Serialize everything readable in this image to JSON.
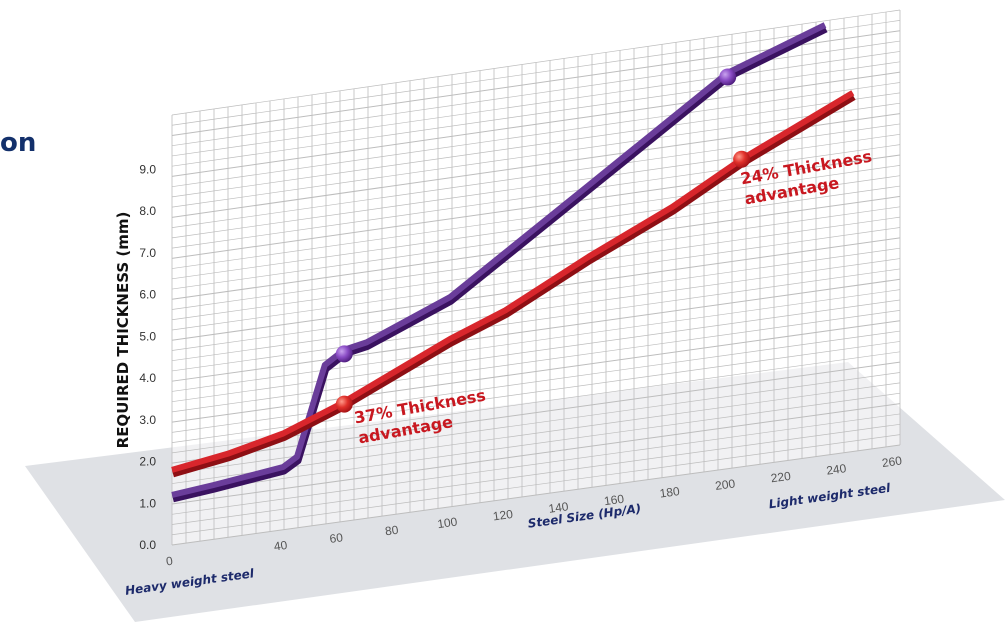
{
  "page": {
    "title_fragment": "on"
  },
  "chart_data": {
    "type": "line",
    "title": "",
    "xlabel": "Steel Size (Hp/A)",
    "ylabel": "REQUIRED THICKNESS (mm)",
    "x_ticks": [
      0,
      40,
      60,
      80,
      100,
      120,
      140,
      160,
      180,
      200,
      220,
      240,
      260
    ],
    "y_ticks": [
      "0.0",
      "1.0",
      "2.0",
      "3.0",
      "4.0",
      "5.0",
      "6.0",
      "7.0",
      "8.0",
      "9.0"
    ],
    "ylim": [
      0,
      9
    ],
    "x_left_note": "Heavy weight steel",
    "x_right_note": "Light weight steel",
    "grid": true,
    "colors": {
      "series_a": "#4b1a7a",
      "series_b": "#c81820",
      "floor": "#dfe1e5",
      "grid": "#bdbdbd",
      "axis_text": "#1d2a6b"
    },
    "series": [
      {
        "x": [
          0,
          15,
          40,
          45,
          55,
          62,
          70,
          100,
          150,
          200,
          235
        ],
        "values": [
          1.2,
          1.3,
          1.5,
          1.7,
          3.8,
          4.1,
          4.2,
          5.0,
          7.2,
          9.4,
          10.2
        ]
      },
      {
        "x": [
          0,
          20,
          40,
          60,
          80,
          100,
          120,
          150,
          180,
          205,
          245
        ],
        "values": [
          1.8,
          2.0,
          2.3,
          2.8,
          3.4,
          4.0,
          4.5,
          5.5,
          6.4,
          7.3,
          8.5
        ]
      }
    ],
    "markers": [
      {
        "series": 0,
        "x": 62,
        "y": 4.0
      },
      {
        "series": 1,
        "x": 62,
        "y": 2.8
      },
      {
        "series": 0,
        "x": 200,
        "y": 9.3
      },
      {
        "series": 1,
        "x": 205,
        "y": 7.3
      }
    ],
    "annotations": [
      {
        "lines": [
          "37% Thickness",
          "advantage"
        ],
        "x": 66,
        "y": 2.3
      },
      {
        "lines": [
          "24% Thickness",
          "advantage"
        ],
        "x": 205,
        "y": 6.7
      }
    ]
  }
}
